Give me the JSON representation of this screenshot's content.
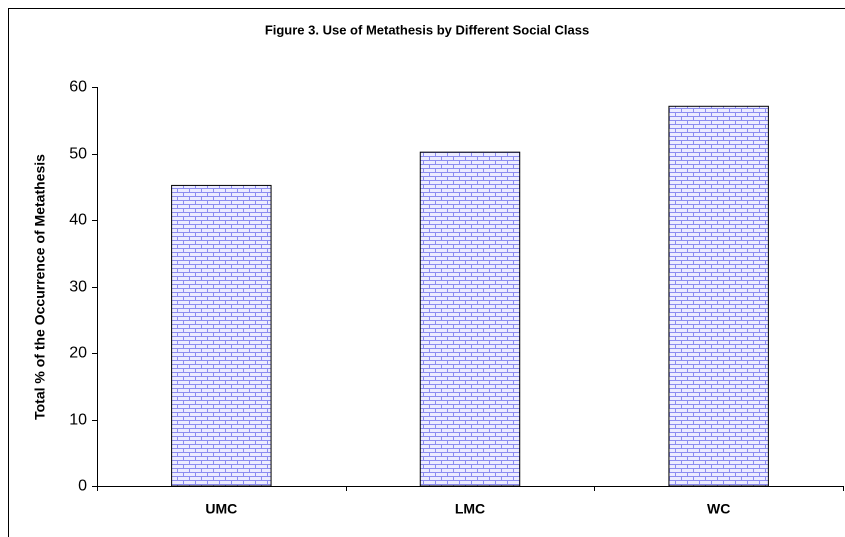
{
  "chart_data": {
    "type": "bar",
    "title": "Figure 3. Use of Metathesis by Different Social Class",
    "y_label": "Total % of the Occurrence of Metathesis",
    "categories": [
      "UMC",
      "LMC",
      "WC"
    ],
    "values": [
      45.2,
      50.2,
      57.1
    ],
    "color": "#8c8cf0",
    "ylim": [
      0,
      60
    ],
    "yticks": [
      0,
      10,
      20,
      30,
      40,
      50,
      60
    ],
    "grid": false
  }
}
